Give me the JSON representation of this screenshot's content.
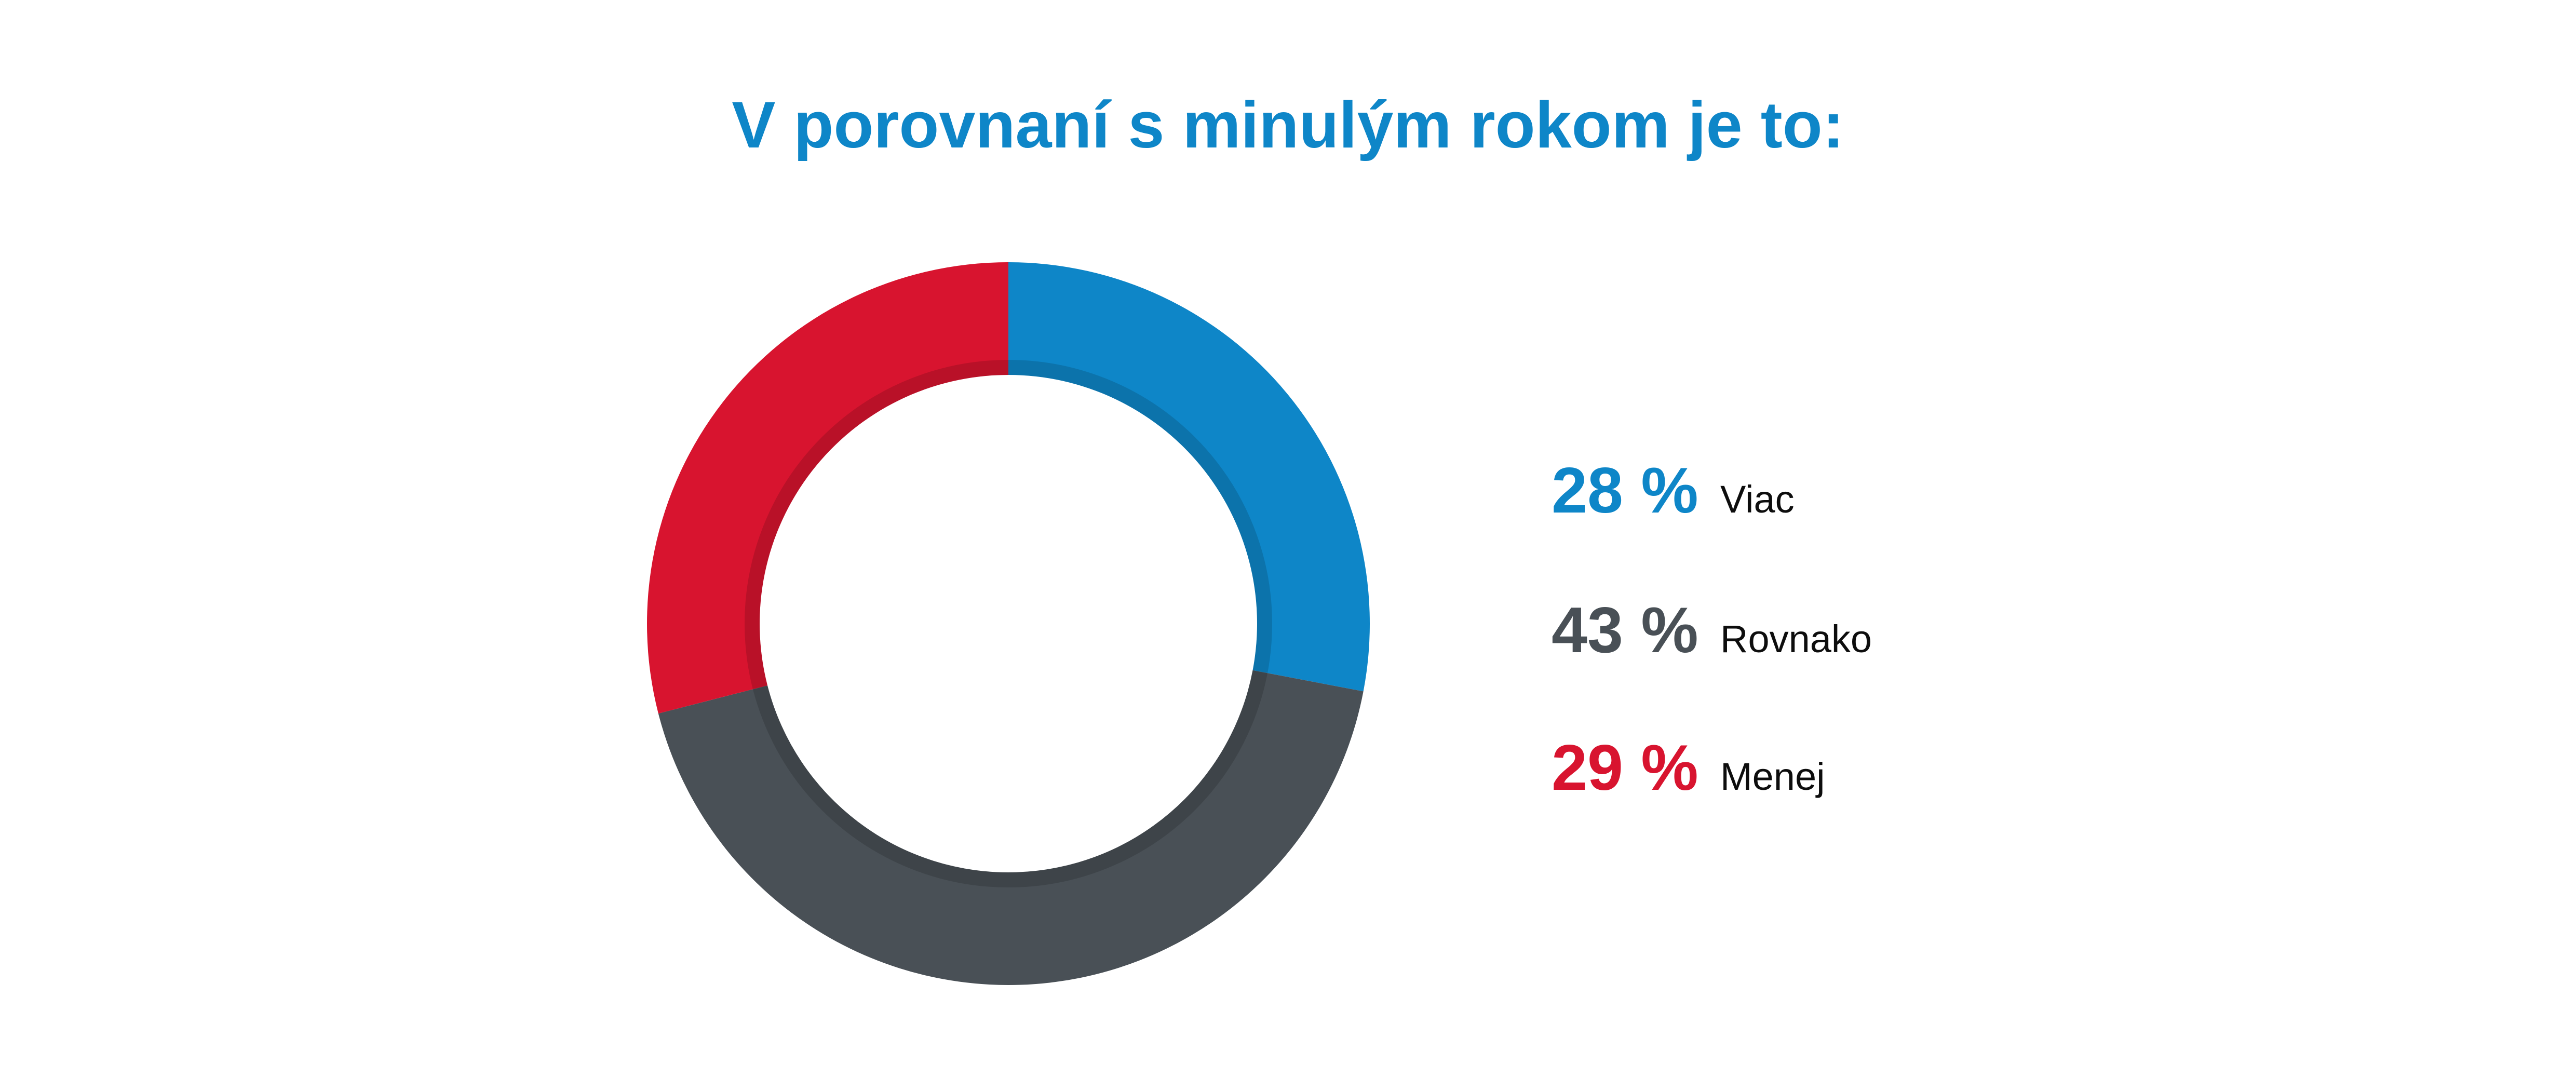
{
  "title": {
    "text": "V porovnaní s minulým rokom je to:",
    "color": "#0e86c8"
  },
  "chart_data": {
    "type": "pie",
    "subtype": "donut",
    "title": "V porovnaní s minulým rokom je to:",
    "direction": "clockwise",
    "start_angle_deg_from_top": 0,
    "slices": [
      {
        "label": "Viac",
        "value": 28,
        "display": "28 %",
        "color": "#0e86c8"
      },
      {
        "label": "Rovnako",
        "value": 43,
        "display": "43 %",
        "color": "#495056"
      },
      {
        "label": "Menej",
        "value": 29,
        "display": "29 %",
        "color": "#d8142f"
      }
    ],
    "inner_radius_ratio": 0.688,
    "inner_shadow_color": "rgba(0,0,0,0.14)",
    "hole_color": "#ffffff",
    "legend_position": "right",
    "background": "#ffffff"
  },
  "legend": {
    "label_color": "#0d0d0d"
  }
}
